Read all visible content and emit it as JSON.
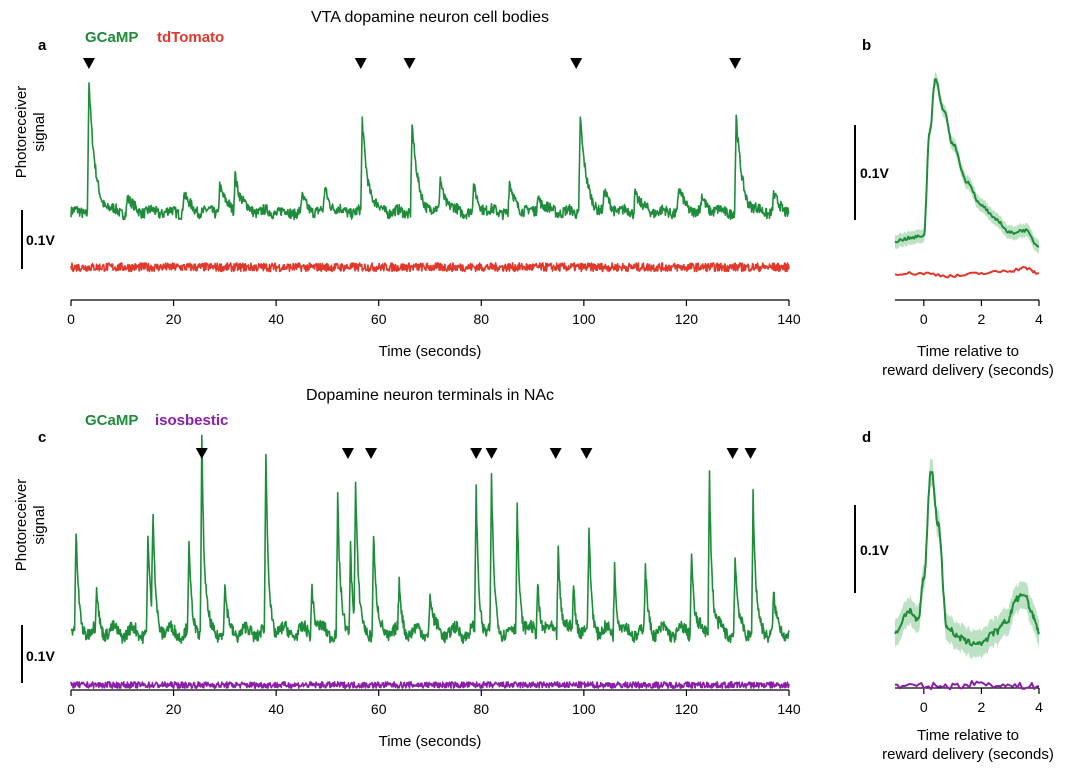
{
  "colors": {
    "gcamp": "#1e8c3a",
    "tdtomato": "#e0392b",
    "isosbestic": "#8a1fa8",
    "band_green": "#9fd4aa"
  },
  "chart_data": [
    {
      "panel": "a",
      "type": "line",
      "title": "VTA dopamine neuron cell bodies",
      "ylabel": "Photoreceiver\nsignal",
      "xlabel": "Time (seconds)",
      "xlim": [
        0,
        140
      ],
      "xticks": [
        0,
        20,
        40,
        60,
        80,
        100,
        120,
        140
      ],
      "scale_bar": "0.1V",
      "reward_times": [
        3.5,
        56.5,
        66,
        98.5,
        129.5
      ],
      "series": [
        {
          "name": "GCaMP",
          "color": "#1e8c3a",
          "baseline": 0.0,
          "peaks": [
            [
              3.5,
              0.55
            ],
            [
              11,
              0.06
            ],
            [
              22,
              0.08
            ],
            [
              29,
              0.12
            ],
            [
              32,
              0.16
            ],
            [
              45,
              0.06
            ],
            [
              49.5,
              0.1
            ],
            [
              56.8,
              0.38
            ],
            [
              66.5,
              0.37
            ],
            [
              72,
              0.14
            ],
            [
              78.5,
              0.1
            ],
            [
              85.5,
              0.12
            ],
            [
              91,
              0.08
            ],
            [
              99.3,
              0.41
            ],
            [
              104,
              0.08
            ],
            [
              110,
              0.09
            ],
            [
              118.5,
              0.1
            ],
            [
              123,
              0.06
            ],
            [
              129.7,
              0.4
            ],
            [
              137,
              0.07
            ]
          ]
        },
        {
          "name": "tdTomato",
          "color": "#e0392b",
          "baseline": -0.23,
          "peaks": []
        }
      ]
    },
    {
      "panel": "b",
      "type": "line",
      "xlabel": "Time relative to\nreward delivery (seconds)",
      "xlim": [
        -1,
        4
      ],
      "xticks": [
        0,
        2,
        4
      ],
      "scale_bar": "0.1V",
      "series": [
        {
          "name": "GCaMP",
          "color": "#1e8c3a",
          "x": [
            -1,
            -0.5,
            0,
            0.2,
            0.4,
            0.7,
            1.0,
            1.5,
            2.0,
            2.5,
            3.0,
            3.5,
            4.0
          ],
          "y": [
            0.0,
            0.01,
            0.02,
            0.4,
            0.6,
            0.48,
            0.36,
            0.22,
            0.13,
            0.08,
            0.03,
            0.04,
            -0.02
          ]
        },
        {
          "name": "tdTomato",
          "color": "#e0392b",
          "x": [
            -1,
            0,
            1,
            2,
            3,
            3.5,
            4
          ],
          "y": [
            -0.12,
            -0.12,
            -0.13,
            -0.12,
            -0.11,
            -0.1,
            -0.12
          ]
        }
      ]
    },
    {
      "panel": "c",
      "type": "line",
      "title": "Dopamine neuron terminals in NAc",
      "ylabel": "Photoreceiver\nsignal",
      "xlabel": "Time (seconds)",
      "xlim": [
        0,
        140
      ],
      "xticks": [
        0,
        20,
        40,
        60,
        80,
        100,
        120,
        140
      ],
      "scale_bar": "0.1V",
      "reward_times": [
        25.5,
        54,
        58.5,
        79,
        82,
        94.5,
        100.5,
        129,
        132.5
      ],
      "series": [
        {
          "name": "GCaMP",
          "color": "#1e8c3a",
          "baseline": 0.0,
          "peaks": [
            [
              1,
              0.18
            ],
            [
              5,
              0.08
            ],
            [
              15,
              0.18
            ],
            [
              16,
              0.2
            ],
            [
              23,
              0.15
            ],
            [
              25.5,
              0.37
            ],
            [
              30,
              0.08
            ],
            [
              38,
              0.33
            ],
            [
              47,
              0.1
            ],
            [
              52,
              0.25
            ],
            [
              54.5,
              0.17
            ],
            [
              55.5,
              0.26
            ],
            [
              59,
              0.19
            ],
            [
              64,
              0.09
            ],
            [
              70,
              0.08
            ],
            [
              79,
              0.26
            ],
            [
              82,
              0.28
            ],
            [
              87,
              0.24
            ],
            [
              91,
              0.1
            ],
            [
              95,
              0.17
            ],
            [
              98,
              0.09
            ],
            [
              101,
              0.19
            ],
            [
              106,
              0.13
            ],
            [
              112,
              0.12
            ],
            [
              121,
              0.16
            ],
            [
              124.5,
              0.31
            ],
            [
              129.5,
              0.14
            ],
            [
              133,
              0.26
            ],
            [
              137,
              0.07
            ]
          ]
        },
        {
          "name": "isosbestic",
          "color": "#8a1fa8",
          "baseline": -0.1,
          "peaks": []
        }
      ]
    },
    {
      "panel": "d",
      "type": "line",
      "xlabel": "Time relative to\nreward delivery (seconds)",
      "xlim": [
        -1,
        4
      ],
      "xticks": [
        0,
        2,
        4
      ],
      "scale_bar": "0.1V",
      "series": [
        {
          "name": "GCaMP",
          "color": "#1e8c3a",
          "x": [
            -1,
            -0.5,
            -0.2,
            0,
            0.25,
            0.5,
            0.8,
            1.2,
            1.6,
            2.0,
            2.5,
            2.9,
            3.2,
            3.5,
            3.8,
            4.0
          ],
          "y": [
            0.0,
            0.04,
            0.02,
            0.1,
            0.3,
            0.2,
            0.01,
            -0.01,
            -0.02,
            -0.02,
            0.0,
            0.02,
            0.06,
            0.07,
            0.03,
            0.0
          ]
        },
        {
          "name": "isosbestic",
          "color": "#8a1fa8",
          "x": [
            -1,
            0,
            1,
            2,
            3,
            4
          ],
          "y": [
            -0.1,
            -0.1,
            -0.1,
            -0.095,
            -0.1,
            -0.1
          ]
        }
      ]
    }
  ]
}
